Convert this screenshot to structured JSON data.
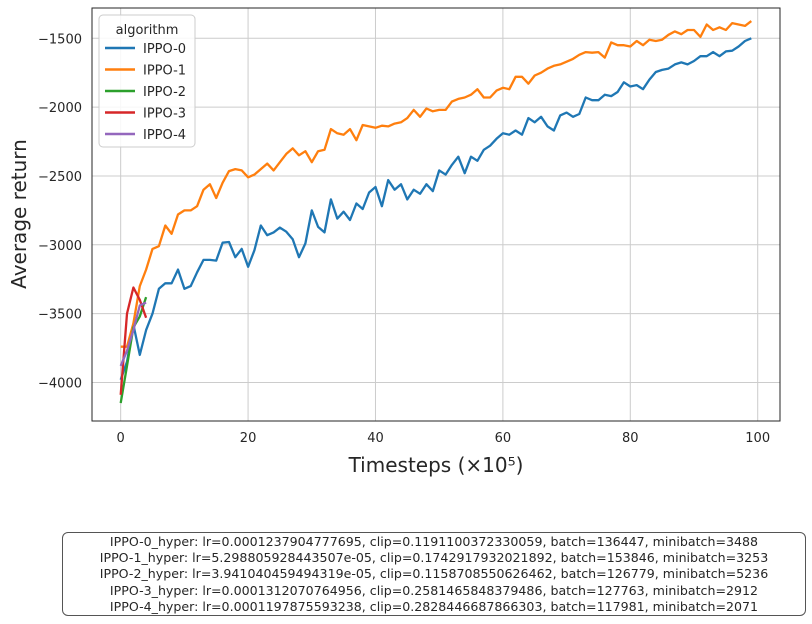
{
  "chart_data": {
    "type": "line",
    "xlabel": "Timesteps (×10⁵)",
    "ylabel": "Average return",
    "xlim": [
      -4.5,
      103.5
    ],
    "ylim": [
      -4280,
      -1280
    ],
    "xticks": [
      0,
      20,
      40,
      60,
      80,
      100
    ],
    "yticks": [
      -4000,
      -3500,
      -3000,
      -2500,
      -2000,
      -1500
    ],
    "grid": true,
    "legend": {
      "title": "algorithm",
      "placement": "top-left"
    },
    "series": [
      {
        "name": "IPPO-0",
        "color": "#1f77b4",
        "x": [
          0,
          1,
          2,
          3,
          4,
          5,
          6,
          7,
          8,
          9,
          10,
          11,
          12,
          13,
          14,
          15,
          16,
          17,
          18,
          19,
          20,
          21,
          22,
          23,
          24,
          25,
          26,
          27,
          28,
          29,
          30,
          31,
          32,
          33,
          34,
          35,
          36,
          37,
          38,
          39,
          40,
          41,
          42,
          43,
          44,
          45,
          46,
          47,
          48,
          49,
          50,
          51,
          52,
          53,
          54,
          55,
          56,
          57,
          58,
          59,
          60,
          61,
          62,
          63,
          64,
          65,
          66,
          67,
          68,
          69,
          70,
          71,
          72,
          73,
          74,
          75,
          76,
          77,
          78,
          79,
          80,
          81,
          82,
          83,
          84,
          85,
          86,
          87,
          88,
          89,
          90,
          91,
          92,
          93,
          94,
          95,
          96,
          97,
          98,
          99
        ],
        "y": [
          -3980,
          -3850,
          -3580,
          -3800,
          -3620,
          -3500,
          -3320,
          -3280,
          -3280,
          -3180,
          -3320,
          -3300,
          -3200,
          -3110,
          -3110,
          -3115,
          -2985,
          -2980,
          -3090,
          -3030,
          -3160,
          -3040,
          -2860,
          -2930,
          -2910,
          -2875,
          -2905,
          -2960,
          -3090,
          -2990,
          -2750,
          -2870,
          -2910,
          -2670,
          -2810,
          -2760,
          -2820,
          -2700,
          -2740,
          -2620,
          -2580,
          -2720,
          -2530,
          -2600,
          -2560,
          -2670,
          -2600,
          -2630,
          -2560,
          -2610,
          -2460,
          -2490,
          -2420,
          -2360,
          -2480,
          -2360,
          -2390,
          -2310,
          -2280,
          -2230,
          -2190,
          -2200,
          -2170,
          -2200,
          -2080,
          -2110,
          -2070,
          -2140,
          -2170,
          -2060,
          -2040,
          -2070,
          -2050,
          -1930,
          -1950,
          -1950,
          -1910,
          -1920,
          -1890,
          -1820,
          -1850,
          -1840,
          -1870,
          -1800,
          -1745,
          -1730,
          -1720,
          -1690,
          -1675,
          -1690,
          -1665,
          -1630,
          -1630,
          -1600,
          -1630,
          -1595,
          -1590,
          -1560,
          -1520,
          -1500
        ]
      },
      {
        "name": "IPPO-1",
        "color": "#ff7f0e",
        "x": [
          0,
          1,
          2,
          3,
          4,
          5,
          6,
          7,
          8,
          9,
          10,
          11,
          12,
          13,
          14,
          15,
          16,
          17,
          18,
          19,
          20,
          21,
          22,
          23,
          24,
          25,
          26,
          27,
          28,
          29,
          30,
          31,
          32,
          33,
          34,
          35,
          36,
          37,
          38,
          39,
          40,
          41,
          42,
          43,
          44,
          45,
          46,
          47,
          48,
          49,
          50,
          51,
          52,
          53,
          54,
          55,
          56,
          57,
          58,
          59,
          60,
          61,
          62,
          63,
          64,
          65,
          66,
          67,
          68,
          69,
          70,
          71,
          72,
          73,
          74,
          75,
          76,
          77,
          78,
          79,
          80,
          81,
          82,
          83,
          84,
          85,
          86,
          87,
          88,
          89,
          90,
          91,
          92,
          93,
          94,
          95,
          96,
          97,
          98,
          99
        ],
        "y": [
          -3740,
          -3740,
          -3570,
          -3300,
          -3180,
          -3030,
          -3010,
          -2860,
          -2920,
          -2780,
          -2750,
          -2750,
          -2720,
          -2600,
          -2560,
          -2660,
          -2550,
          -2465,
          -2450,
          -2460,
          -2510,
          -2490,
          -2450,
          -2410,
          -2460,
          -2400,
          -2340,
          -2300,
          -2350,
          -2320,
          -2400,
          -2320,
          -2310,
          -2160,
          -2190,
          -2200,
          -2160,
          -2240,
          -2130,
          -2140,
          -2150,
          -2135,
          -2140,
          -2120,
          -2110,
          -2080,
          -2020,
          -2070,
          -2010,
          -2030,
          -2020,
          -2020,
          -1960,
          -1940,
          -1930,
          -1910,
          -1870,
          -1930,
          -1930,
          -1880,
          -1860,
          -1870,
          -1780,
          -1780,
          -1830,
          -1770,
          -1750,
          -1720,
          -1700,
          -1690,
          -1670,
          -1650,
          -1620,
          -1600,
          -1605,
          -1600,
          -1640,
          -1530,
          -1550,
          -1550,
          -1560,
          -1520,
          -1550,
          -1510,
          -1520,
          -1510,
          -1475,
          -1450,
          -1470,
          -1440,
          -1440,
          -1490,
          -1400,
          -1440,
          -1420,
          -1440,
          -1390,
          -1400,
          -1410,
          -1375
        ]
      },
      {
        "name": "IPPO-2",
        "color": "#2ca02c",
        "x": [
          0,
          1,
          2,
          3,
          4
        ],
        "y": [
          -4150,
          -3880,
          -3600,
          -3520,
          -3380
        ]
      },
      {
        "name": "IPPO-3",
        "color": "#d62728",
        "x": [
          0,
          1,
          2,
          3,
          4
        ],
        "y": [
          -4090,
          -3500,
          -3310,
          -3400,
          -3530
        ]
      },
      {
        "name": "IPPO-4",
        "color": "#9467bd",
        "x": [
          0,
          1,
          2,
          3,
          4
        ],
        "y": [
          -3880,
          -3770,
          -3620,
          -3440,
          -3420
        ]
      }
    ],
    "annotation_lines": [
      "IPPO-0_hyper: lr=0.0001237904777695, clip=0.1191100372330059, batch=136447, minibatch=3488",
      "IPPO-1_hyper: lr=5.298805928443507e-05, clip=0.1742917932021892, batch=153846, minibatch=3253",
      "IPPO-2_hyper: lr=3.941040459494319e-05, clip=0.1158708550626462, batch=126779, minibatch=5236",
      "IPPO-3_hyper: lr=0.0001312070764956, clip=0.2581465848379486, batch=127763, minibatch=2912",
      "IPPO-4_hyper: lr=0.0001197875593238, clip=0.2828446687866303, batch=117981, minibatch=2071"
    ]
  }
}
